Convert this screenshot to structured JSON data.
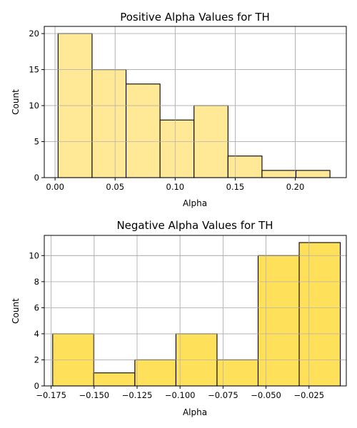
{
  "chart_data": [
    {
      "type": "bar",
      "subtype": "histogram",
      "title": "Positive Alpha Values for TH",
      "xlabel": "Alpha",
      "ylabel": "Count",
      "color": "#FFE896",
      "edgecolor": "#000000",
      "grid": true,
      "xlim": [
        -0.009,
        0.2425
      ],
      "ylim": [
        0,
        21
      ],
      "xticks": [
        0.0,
        0.05,
        0.1,
        0.15,
        0.2
      ],
      "xtick_labels": [
        "0.00",
        "0.05",
        "0.10",
        "0.15",
        "0.20"
      ],
      "yticks": [
        0,
        5,
        10,
        15,
        20
      ],
      "ytick_labels": [
        "0",
        "5",
        "10",
        "15",
        "20"
      ],
      "bin_edges": [
        0.0025,
        0.0308,
        0.0591,
        0.0874,
        0.1157,
        0.144,
        0.1723,
        0.2006,
        0.2289
      ],
      "values": [
        20,
        15,
        13,
        8,
        10,
        3,
        1,
        1
      ]
    },
    {
      "type": "bar",
      "subtype": "histogram",
      "title": "Negative Alpha Values for TH",
      "xlabel": "Alpha",
      "ylabel": "Count",
      "color": "#FFE05A",
      "edgecolor": "#000000",
      "grid": true,
      "xlim": [
        -0.179,
        -0.0033
      ],
      "ylim": [
        0,
        11.55
      ],
      "xticks": [
        -0.175,
        -0.15,
        -0.125,
        -0.1,
        -0.075,
        -0.05,
        -0.025
      ],
      "xtick_labels": [
        "−0.175",
        "−0.150",
        "−0.125",
        "−0.100",
        "−0.075",
        "−0.050",
        "−0.025"
      ],
      "yticks": [
        0,
        2,
        4,
        6,
        8,
        10
      ],
      "ytick_labels": [
        "0",
        "2",
        "4",
        "6",
        "8",
        "10"
      ],
      "bin_edges": [
        -0.1741,
        -0.1502,
        -0.1263,
        -0.1024,
        -0.0785,
        -0.0546,
        -0.0307,
        -0.0068
      ],
      "values": [
        4,
        1,
        2,
        4,
        2,
        10,
        11
      ]
    }
  ]
}
